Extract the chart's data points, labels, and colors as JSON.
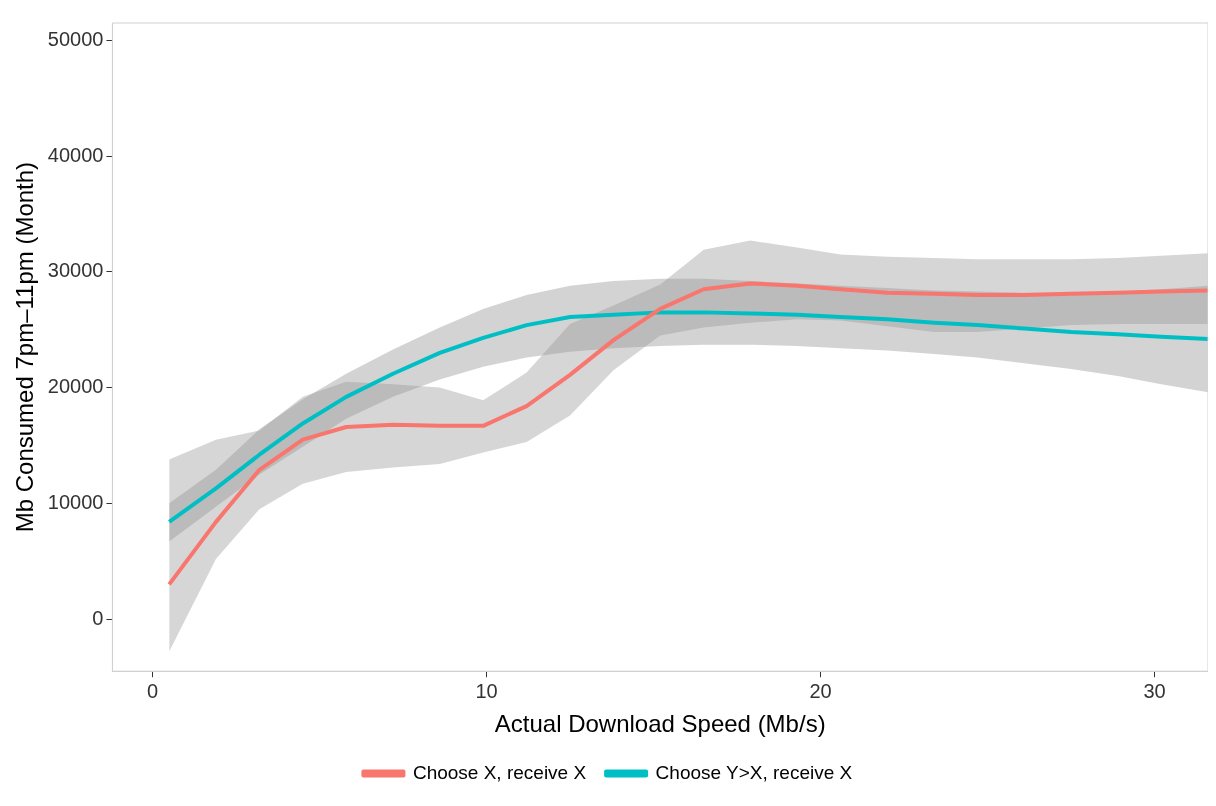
{
  "chart_data": {
    "type": "line",
    "xlabel": "Actual Download Speed (Mb/s)",
    "ylabel": "Mb Consumed 7pm–11pm (Month)",
    "x": [
      0.5,
      1.9,
      3.2,
      4.5,
      5.8,
      7.2,
      8.6,
      9.9,
      11.2,
      12.5,
      13.8,
      15.2,
      16.5,
      17.9,
      19.3,
      20.6,
      22.0,
      23.4,
      24.7,
      26.1,
      27.5,
      28.9,
      30.2,
      31.6
    ],
    "xlim": [
      -1.2,
      31.6
    ],
    "xticks": [
      0,
      10,
      20,
      30
    ],
    "ylim": [
      -4500,
      51500
    ],
    "yticks": [
      0,
      10000,
      20000,
      30000,
      40000,
      50000
    ],
    "legend": "bottom",
    "marker": "none",
    "line_style": "solid",
    "series": [
      {
        "name": "Choose X, receive X",
        "color": "#f8766d",
        "values": [
          3000,
          8400,
          12900,
          15500,
          16600,
          16800,
          16700,
          16700,
          18400,
          21100,
          24100,
          26800,
          28500,
          29000,
          28800,
          28500,
          28200,
          28100,
          28000,
          28000,
          28100,
          28200,
          28300,
          28400
        ],
        "lower": [
          -2800,
          5200,
          9500,
          11700,
          12700,
          13100,
          13400,
          14400,
          15300,
          17600,
          21500,
          24500,
          25200,
          25600,
          25900,
          25800,
          25300,
          24800,
          24800,
          25100,
          25400,
          25500,
          25500,
          25500
        ],
        "upper": [
          13800,
          15500,
          16300,
          19200,
          20500,
          20300,
          20000,
          18900,
          21300,
          25500,
          27100,
          28900,
          31900,
          32700,
          32100,
          31500,
          31300,
          31200,
          31100,
          31100,
          31100,
          31200,
          31400,
          31600
        ]
      },
      {
        "name": "Choose Y>X, receive X",
        "color": "#00bfc4",
        "values": [
          8400,
          11300,
          14200,
          16900,
          19200,
          21200,
          23000,
          24300,
          25400,
          26100,
          26300,
          26500,
          26500,
          26400,
          26300,
          26100,
          25900,
          25600,
          25400,
          25100,
          24800,
          24600,
          24400,
          24200
        ],
        "lower": [
          6700,
          9700,
          12500,
          14900,
          17300,
          19200,
          20700,
          21800,
          22600,
          23100,
          23400,
          23600,
          23700,
          23700,
          23600,
          23400,
          23200,
          22900,
          22600,
          22100,
          21600,
          21000,
          20300,
          19600
        ],
        "upper": [
          10000,
          12900,
          16400,
          19000,
          21200,
          23300,
          25200,
          26800,
          28000,
          28800,
          29200,
          29400,
          29400,
          29200,
          29000,
          28800,
          28600,
          28400,
          28300,
          28200,
          28200,
          28300,
          28500,
          28800
        ]
      }
    ]
  }
}
